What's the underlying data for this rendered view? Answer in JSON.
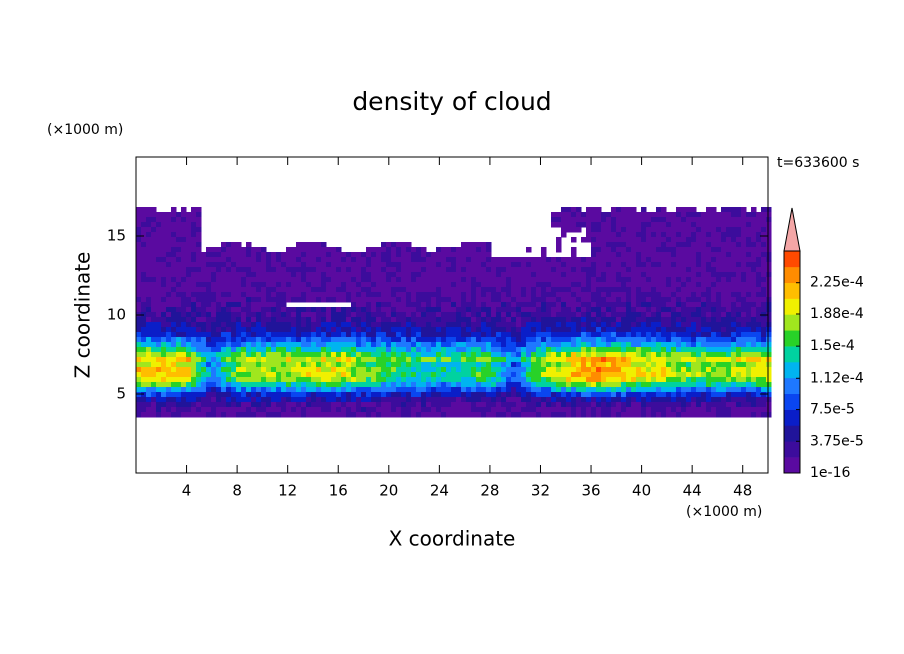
{
  "chart_data": {
    "type": "contour",
    "title": "density of cloud",
    "x_label": "X coordinate",
    "y_label": "Z coordinate",
    "x_unit": "(×1000 m)",
    "y_unit": "(×1000 m)",
    "annotation": "t=633600 s",
    "xlim": [
      0,
      50
    ],
    "xticks": [
      4,
      8,
      12,
      16,
      20,
      24,
      28,
      32,
      36,
      40,
      44,
      48
    ],
    "ylim": [
      0,
      20
    ],
    "yticks": [
      5,
      10,
      15
    ],
    "colorbar": {
      "clim": [
        1e-16,
        0.0002625
      ],
      "ticks": [
        {
          "value": 1e-16,
          "label": "1e-16"
        },
        {
          "value": 3.75e-05,
          "label": "3.75e-5"
        },
        {
          "value": 7.5e-05,
          "label": "7.5e-5"
        },
        {
          "value": 0.000112,
          "label": "1.12e-4"
        },
        {
          "value": 0.00015,
          "label": "1.5e-4"
        },
        {
          "value": 0.000188,
          "label": "1.88e-4"
        },
        {
          "value": 0.000225,
          "label": "2.25e-4"
        }
      ],
      "colors": [
        "#5a0aa0",
        "#3c0c9c",
        "#20149a",
        "#0a1ec8",
        "#0a46f0",
        "#1e78ff",
        "#00b4f0",
        "#00d2a0",
        "#28d228",
        "#a0e61e",
        "#f0f000",
        "#ffbe00",
        "#ff8c00",
        "#ff4a00"
      ],
      "over_color": "#f4a6a6"
    }
  }
}
